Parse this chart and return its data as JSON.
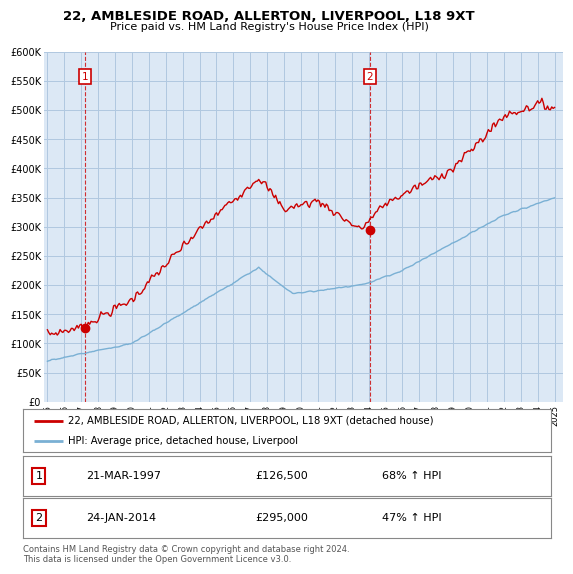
{
  "title": "22, AMBLESIDE ROAD, ALLERTON, LIVERPOOL, L18 9XT",
  "subtitle": "Price paid vs. HM Land Registry's House Price Index (HPI)",
  "legend_label_red": "22, AMBLESIDE ROAD, ALLERTON, LIVERPOOL, L18 9XT (detached house)",
  "legend_label_blue": "HPI: Average price, detached house, Liverpool",
  "sale1_date": "21-MAR-1997",
  "sale1_price": "£126,500",
  "sale1_hpi": "68% ↑ HPI",
  "sale2_date": "24-JAN-2014",
  "sale2_price": "£295,000",
  "sale2_hpi": "47% ↑ HPI",
  "footer": "Contains HM Land Registry data © Crown copyright and database right 2024.\nThis data is licensed under the Open Government Licence v3.0.",
  "ylim": [
    0,
    600000
  ],
  "yticks": [
    0,
    50000,
    100000,
    150000,
    200000,
    250000,
    300000,
    350000,
    400000,
    450000,
    500000,
    550000,
    600000
  ],
  "red_color": "#cc0000",
  "blue_color": "#7ab0d4",
  "background_color": "#ffffff",
  "chart_bg_color": "#dce8f5",
  "grid_color": "#b0c8e0",
  "sale1_x": 1997.21,
  "sale1_y": 126500,
  "sale2_x": 2014.07,
  "sale2_y": 295000,
  "xlim_left": 1994.8,
  "xlim_right": 2025.5
}
